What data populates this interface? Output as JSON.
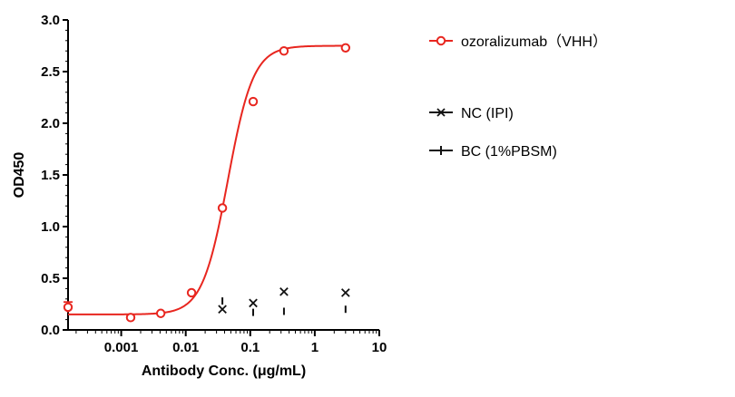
{
  "chart_data": {
    "type": "scatter",
    "xlabel": "Antibody Conc. (μg/mL)",
    "ylabel": "OD450",
    "x_scale": "log",
    "xlim": [
      0.00015,
      10
    ],
    "ylim": [
      0,
      3.0
    ],
    "x_tick_labels": [
      "0.001",
      "0.01",
      "0.1",
      "1",
      "10"
    ],
    "x_tick_values": [
      0.001,
      0.01,
      0.1,
      1,
      10
    ],
    "y_tick_labels": [
      "0.0",
      "0.5",
      "1.0",
      "1.5",
      "2.0",
      "2.5",
      "3.0"
    ],
    "y_tick_values": [
      0,
      0.5,
      1.0,
      1.5,
      2.0,
      2.5,
      3.0
    ],
    "grid": false,
    "legend_position": "right",
    "series": [
      {
        "name": "ozoralizumab（VHH）",
        "marker": "open-circle",
        "color": "#e8261f",
        "fit": "sigmoidal",
        "x": [
          0.00015,
          0.0014,
          0.0041,
          0.0123,
          0.037,
          0.111,
          0.333,
          3.0
        ],
        "y": [
          0.22,
          0.12,
          0.16,
          0.36,
          1.18,
          2.21,
          2.7,
          2.73
        ],
        "y_error": [
          0.05,
          0,
          0,
          0,
          0,
          0,
          0,
          0
        ]
      },
      {
        "name": "NC (IPI)",
        "marker": "x",
        "color": "#111111",
        "x": [
          0.037,
          0.111,
          0.333,
          3.0
        ],
        "y": [
          0.2,
          0.26,
          0.37,
          0.36
        ]
      },
      {
        "name": "BC (1%PBSM)",
        "marker": "plus",
        "color": "#111111",
        "x": [
          0.037,
          0.111,
          0.333,
          3.0
        ],
        "y": [
          0.28,
          0.17,
          0.18,
          0.2
        ]
      }
    ]
  }
}
